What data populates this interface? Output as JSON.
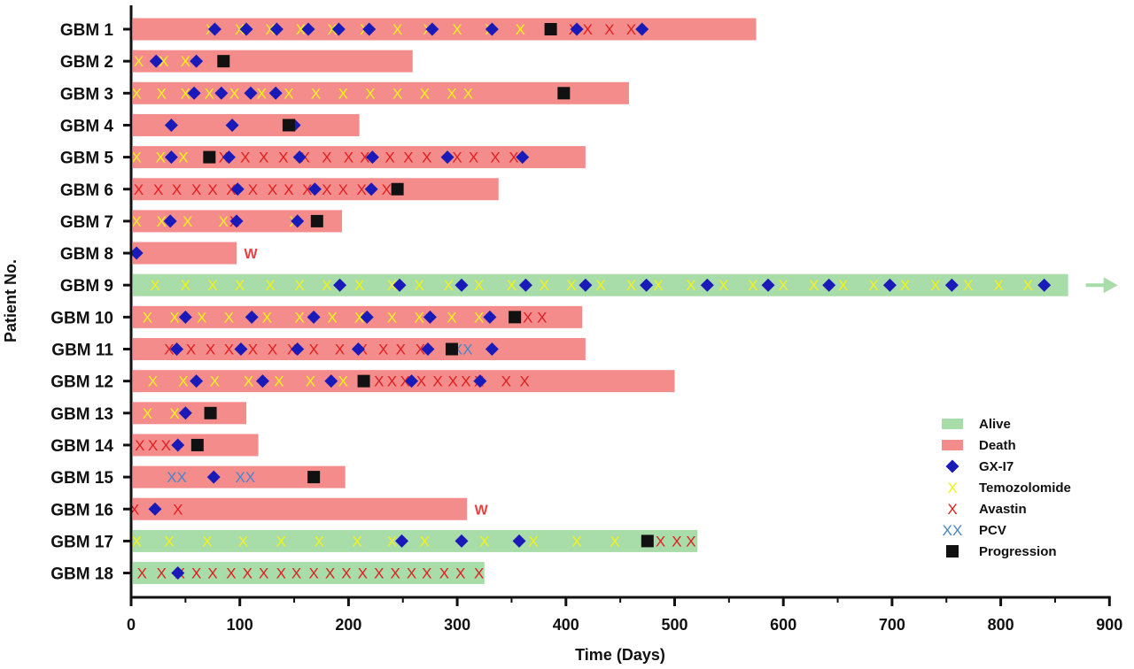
{
  "chart_data": {
    "type": "swimmer",
    "xlabel": "Time (Days)",
    "ylabel": "Patient No.",
    "xlim": [
      0,
      900
    ],
    "xticks": [
      "0",
      "100",
      "200",
      "300",
      "400",
      "500",
      "600",
      "700",
      "800",
      "900"
    ],
    "grid": false,
    "legend_position": "bottom-right",
    "colors": {
      "alive": "#a8dca8",
      "death": "#f48c8c",
      "gx": "#1a1ab8",
      "tmz": "#f2f21a",
      "avastin": "#e02020",
      "pcv": "#4a86c8",
      "progression": "#111111",
      "w": "#e84040",
      "axis": "#111111"
    },
    "legend": [
      {
        "key": "alive",
        "label": "Alive"
      },
      {
        "key": "death",
        "label": "Death"
      },
      {
        "key": "gx",
        "label": "GX-I7"
      },
      {
        "key": "tmz",
        "label": "Temozolomide"
      },
      {
        "key": "avastin",
        "label": "Avastin"
      },
      {
        "key": "pcv",
        "label": "PCV"
      },
      {
        "key": "progression",
        "label": "Progression"
      }
    ],
    "w_label": "W",
    "pcv_symbol": "XX",
    "x_symbol": "X",
    "patients": [
      {
        "label": "GBM 1",
        "status": "death",
        "end": 575,
        "tmz": [
          73,
          100,
          128,
          156,
          185,
          215,
          245,
          273,
          300,
          330,
          358,
          385
        ],
        "avastin": [
          407,
          420,
          440,
          460
        ],
        "gx": [
          77,
          106,
          134,
          163,
          191,
          219,
          277,
          332,
          410,
          470
        ],
        "pcv": [],
        "progression": [
          386
        ],
        "w": false
      },
      {
        "label": "GBM 2",
        "status": "death",
        "end": 259,
        "tmz": [
          7,
          30,
          50
        ],
        "avastin": [],
        "gx": [
          23,
          60
        ],
        "pcv": [],
        "progression": [
          85
        ],
        "w": false
      },
      {
        "label": "GBM 3",
        "status": "death",
        "end": 458,
        "tmz": [
          5,
          28,
          50,
          72,
          95,
          120,
          145,
          170,
          195,
          220,
          245,
          270,
          295,
          310
        ],
        "avastin": [],
        "gx": [
          58,
          83,
          110,
          133
        ],
        "pcv": [],
        "progression": [
          398
        ],
        "w": false
      },
      {
        "label": "GBM 4",
        "status": "death",
        "end": 210,
        "tmz": [],
        "avastin": [],
        "gx": [
          37,
          93,
          150
        ],
        "pcv": [],
        "progression": [
          145
        ],
        "w": false
      },
      {
        "label": "GBM 5",
        "status": "death",
        "end": 418,
        "tmz": [
          5,
          27,
          48
        ],
        "avastin": [
          85,
          105,
          122,
          140,
          160,
          180,
          200,
          215,
          238,
          255,
          272,
          300,
          315,
          335,
          352
        ],
        "gx": [
          37,
          90,
          155,
          222,
          291,
          360
        ],
        "pcv": [],
        "progression": [
          72
        ],
        "w": false
      },
      {
        "label": "GBM 6",
        "status": "death",
        "end": 338,
        "tmz": [],
        "avastin": [
          7,
          25,
          42,
          60,
          75,
          92,
          112,
          130,
          145,
          162,
          180,
          195,
          212,
          235
        ],
        "gx": [
          98,
          169,
          221
        ],
        "pcv": [],
        "progression": [
          245
        ],
        "w": false
      },
      {
        "label": "GBM 7",
        "status": "death",
        "end": 194,
        "tmz": [
          5,
          28,
          52,
          85,
          150
        ],
        "avastin": [
          95
        ],
        "gx": [
          36,
          97,
          153
        ],
        "pcv": [],
        "progression": [
          171
        ],
        "w": false
      },
      {
        "label": "GBM 8",
        "status": "death",
        "end": 97,
        "tmz": [],
        "avastin": [],
        "gx": [
          5
        ],
        "pcv": [],
        "progression": [],
        "w": true
      },
      {
        "label": "GBM 9",
        "status": "alive",
        "end": 862,
        "arrow": true,
        "tmz": [
          22,
          50,
          75,
          100,
          128,
          155,
          180,
          210,
          240,
          265,
          292,
          320,
          350,
          380,
          405,
          432,
          460,
          485,
          515,
          545,
          572,
          600,
          628,
          655,
          683,
          712,
          740,
          770,
          798,
          825
        ],
        "avastin": [],
        "gx": [
          192,
          247,
          304,
          363,
          418,
          474,
          530,
          586,
          642,
          698,
          755,
          840
        ],
        "pcv": [],
        "progression": [],
        "w": false
      },
      {
        "label": "GBM 10",
        "status": "death",
        "end": 415,
        "tmz": [
          15,
          40,
          65,
          90,
          125,
          155,
          185,
          210,
          240,
          265,
          295,
          320
        ],
        "avastin": [
          365,
          378
        ],
        "gx": [
          50,
          111,
          168,
          217,
          275,
          330
        ],
        "pcv": [],
        "progression": [
          353
        ],
        "w": false
      },
      {
        "label": "GBM 11",
        "status": "death",
        "end": 418,
        "tmz": [],
        "avastin": [
          35,
          55,
          73,
          90,
          112,
          130,
          148,
          168,
          192,
          213,
          232,
          248,
          266
        ],
        "gx": [
          42,
          101,
          153,
          209,
          273,
          332
        ],
        "pcv": [
          305
        ],
        "progression": [
          295
        ],
        "w": false
      },
      {
        "label": "GBM 12",
        "status": "death",
        "end": 500,
        "tmz": [
          20,
          48,
          77,
          108,
          136,
          165,
          195
        ],
        "avastin": [
          228,
          240,
          252,
          267,
          282,
          296,
          308,
          320,
          345,
          362
        ],
        "gx": [
          60,
          121,
          184,
          258,
          321
        ],
        "pcv": [],
        "progression": [
          214
        ],
        "w": false
      },
      {
        "label": "GBM 13",
        "status": "death",
        "end": 106,
        "tmz": [
          15,
          40
        ],
        "avastin": [],
        "gx": [
          50
        ],
        "pcv": [],
        "progression": [
          73
        ],
        "w": false
      },
      {
        "label": "GBM 14",
        "status": "death",
        "end": 117,
        "tmz": [],
        "avastin": [
          8,
          20,
          32
        ],
        "gx": [
          43
        ],
        "pcv": [],
        "progression": [
          61
        ],
        "w": false
      },
      {
        "label": "GBM 15",
        "status": "death",
        "end": 197,
        "tmz": [],
        "avastin": [],
        "gx": [
          76
        ],
        "pcv": [
          42,
          105
        ],
        "progression": [
          168
        ],
        "w": false
      },
      {
        "label": "GBM 16",
        "status": "death",
        "end": 309,
        "tmz": [],
        "avastin": [
          3,
          43
        ],
        "gx": [
          22
        ],
        "pcv": [],
        "progression": [],
        "w": true
      },
      {
        "label": "GBM 17",
        "status": "alive",
        "end": 521,
        "tmz": [
          5,
          35,
          70,
          103,
          138,
          173,
          208,
          240,
          270,
          325,
          370,
          410,
          445
        ],
        "avastin": [
          487,
          502,
          515
        ],
        "gx": [
          249,
          304,
          357
        ],
        "pcv": [],
        "progression": [
          475
        ],
        "w": false
      },
      {
        "label": "GBM 18",
        "status": "alive",
        "end": 325,
        "tmz": [],
        "avastin": [
          10,
          28,
          45,
          60,
          75,
          92,
          107,
          122,
          138,
          152,
          168,
          183,
          198,
          213,
          228,
          243,
          258,
          272,
          288,
          303,
          320
        ],
        "gx": [
          43
        ],
        "pcv": [],
        "progression": [],
        "w": false
      }
    ]
  }
}
